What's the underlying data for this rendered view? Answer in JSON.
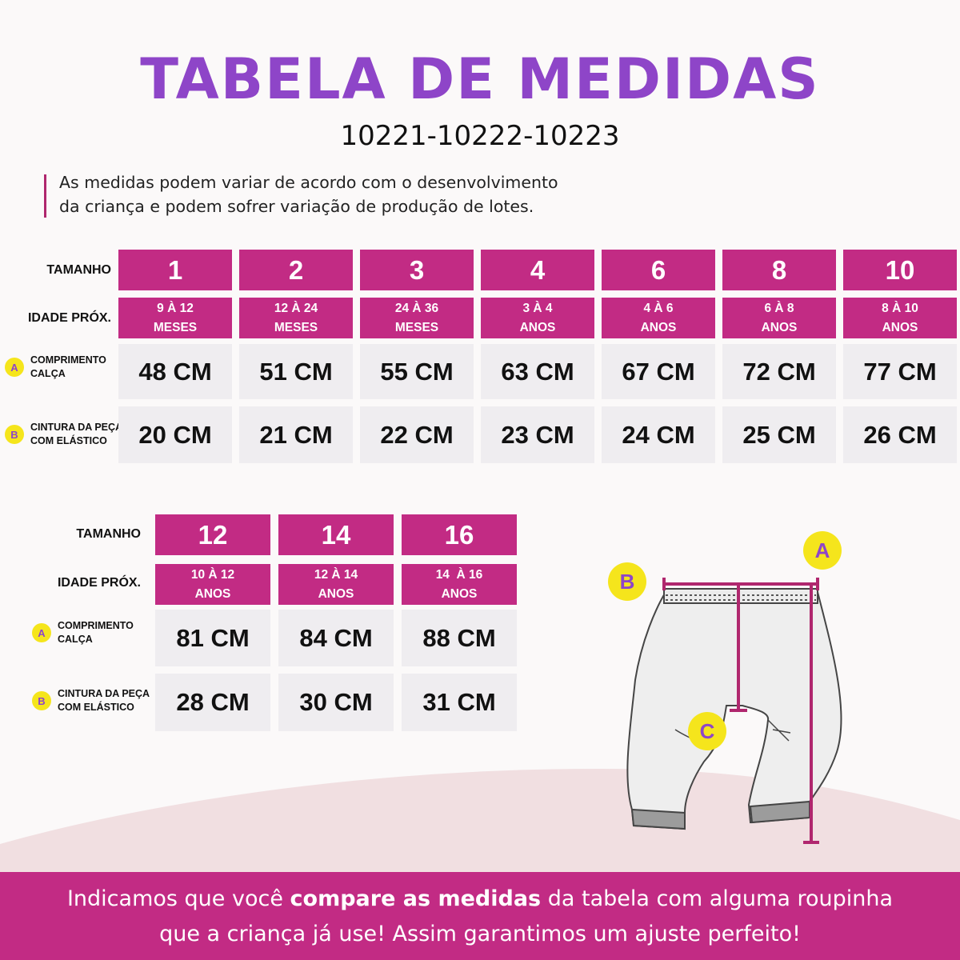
{
  "header": {
    "title": "TABELA DE MEDIDAS",
    "codes": "10221-10222-10223"
  },
  "note": {
    "line1": "As medidas podem variar de acordo com o desenvolvimento",
    "line2": "da criança e podem sofrer variação de produção de lotes."
  },
  "labels": {
    "size": "TAMANHO",
    "age": "IDADE PRÓX.",
    "length_badge": "A",
    "length": "COMPRIMENTO\nCALÇA",
    "waist_badge": "B",
    "waist": "CINTURA DA PEÇA\nCOM ELÁSTICO"
  },
  "table1": {
    "columns": [
      {
        "size": "1",
        "age1": "9 À 12",
        "age2": "MESES",
        "length": "48 CM",
        "waist": "20 CM"
      },
      {
        "size": "2",
        "age1": "12 À 24",
        "age2": "MESES",
        "length": "51 CM",
        "waist": "21 CM"
      },
      {
        "size": "3",
        "age1": "24 À 36",
        "age2": "MESES",
        "length": "55 CM",
        "waist": "22 CM"
      },
      {
        "size": "4",
        "age1": "3 À 4",
        "age2": "ANOS",
        "length": "63 CM",
        "waist": "23 CM"
      },
      {
        "size": "6",
        "age1": "4 À 6",
        "age2": "ANOS",
        "length": "67 CM",
        "waist": "24 CM"
      },
      {
        "size": "8",
        "age1": "6 À 8",
        "age2": "ANOS",
        "length": "72 CM",
        "waist": "25 CM"
      },
      {
        "size": "10",
        "age1": "8 À 10",
        "age2": "ANOS",
        "length": "77 CM",
        "waist": "26 CM"
      }
    ]
  },
  "table2": {
    "columns": [
      {
        "size": "12",
        "age1": "10 À 12",
        "age2": "ANOS",
        "length": "81 CM",
        "waist": "28 CM"
      },
      {
        "size": "14",
        "age1": "12 À 14",
        "age2": "ANOS",
        "length": "84 CM",
        "waist": "30 CM"
      },
      {
        "size": "16",
        "age1": "14  À 16",
        "age2": "ANOS",
        "length": "88 CM",
        "waist": "31 CM"
      }
    ]
  },
  "diagram": {
    "badge_a": "A",
    "badge_b": "B",
    "badge_c": "C"
  },
  "footer": {
    "part1": "Indicamos que você ",
    "bold": "compare as medidas",
    "part2": " da tabela com alguma roupinha",
    "line2": "que a criança já use! Assim garantimos um ajuste perfeito!"
  },
  "colors": {
    "title": "#8e45c8",
    "accent": "#c22b84",
    "cell": "#efedf0",
    "badge": "#f5e51c"
  }
}
